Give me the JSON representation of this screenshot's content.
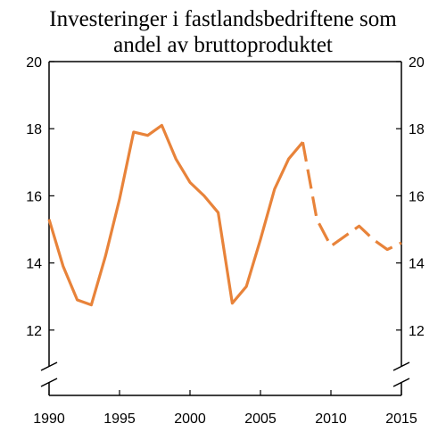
{
  "chart_data": {
    "type": "line",
    "title_lines": [
      "Investeringer i fastlandsbedriftene som",
      "andel av bruttoproduktet"
    ],
    "xlabel": "",
    "ylabel": "",
    "xlim": [
      1990,
      2015
    ],
    "ylim": [
      10.4,
      20
    ],
    "x_ticks": [
      1990,
      1995,
      2000,
      2005,
      2010,
      2015
    ],
    "y_ticks": [
      12,
      14,
      16,
      18,
      20
    ],
    "y_axis_break": true,
    "grid": false,
    "line_color": "#E8833A",
    "series": [
      {
        "style": "solid",
        "x": [
          1990,
          1991,
          1992,
          1993,
          1994,
          1995,
          1996,
          1997,
          1998,
          1999,
          2000,
          2001,
          2002,
          2003,
          2004,
          2005,
          2006,
          2007,
          2008
        ],
        "y": [
          15.3,
          13.9,
          12.9,
          12.75,
          14.2,
          15.9,
          17.9,
          17.8,
          18.1,
          17.1,
          16.4,
          16.0,
          15.5,
          12.8,
          13.3,
          14.7,
          16.2,
          17.1,
          17.6
        ]
      },
      {
        "style": "dashed",
        "x": [
          2008,
          2009,
          2010,
          2011,
          2012,
          2013,
          2014,
          2015
        ],
        "y": [
          17.6,
          15.3,
          14.5,
          14.8,
          15.1,
          14.7,
          14.4,
          14.6
        ]
      }
    ]
  }
}
